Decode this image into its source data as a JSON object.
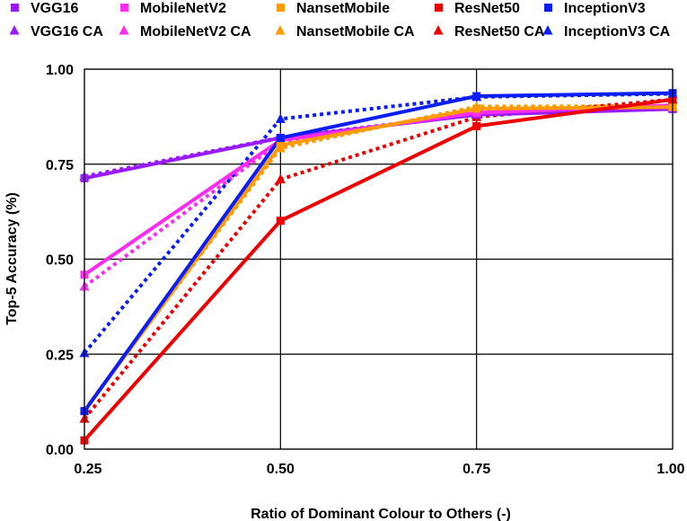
{
  "chart_data": {
    "type": "line",
    "title": "",
    "xlabel": "Ratio of Dominant Colour to Others (-)",
    "ylabel": "Top-5 Accuracy  (%)",
    "x": [
      0.25,
      0.5,
      0.75,
      1.0
    ],
    "x_tick_labels": [
      "0.25",
      "0.50",
      "0.75",
      "1.00"
    ],
    "y_ticks": [
      0.0,
      0.25,
      0.5,
      0.75,
      1.0
    ],
    "y_tick_labels": [
      "0.00",
      "0.25",
      "0.50",
      "0.75",
      "1.00"
    ],
    "xlim": [
      0.25,
      1.0
    ],
    "ylim": [
      0.0,
      1.0
    ],
    "grid": true,
    "legend_position": "top",
    "series": [
      {
        "name": "VGG16",
        "color": "#9a1aff",
        "style": "solid",
        "marker": "square",
        "values": [
          0.713,
          0.819,
          0.88,
          0.895
        ]
      },
      {
        "name": "MobileNetV2",
        "color": "#ff2bf0",
        "style": "solid",
        "marker": "square",
        "values": [
          0.459,
          0.813,
          0.885,
          0.905
        ]
      },
      {
        "name": "NansetMobile",
        "color": "#ff9a00",
        "style": "solid",
        "marker": "square",
        "values": [
          0.1,
          0.8,
          0.896,
          0.9
        ]
      },
      {
        "name": "ResNet50",
        "color": "#ee0000",
        "style": "solid",
        "marker": "square",
        "values": [
          0.023,
          0.601,
          0.85,
          0.92
        ]
      },
      {
        "name": "InceptionV3",
        "color": "#0b1ef5",
        "style": "solid",
        "marker": "square",
        "values": [
          0.1,
          0.819,
          0.929,
          0.937
        ]
      },
      {
        "name": "VGG16 CA",
        "color": "#9a1aff",
        "style": "dotted",
        "marker": "triangle",
        "values": [
          0.718,
          0.82,
          0.882,
          0.897
        ]
      },
      {
        "name": "MobileNetV2 CA",
        "color": "#ff2bf0",
        "style": "dotted",
        "marker": "triangle",
        "values": [
          0.428,
          0.808,
          0.89,
          0.903
        ]
      },
      {
        "name": "NansetMobile CA",
        "color": "#ff9a00",
        "style": "dotted",
        "marker": "triangle",
        "values": [
          0.103,
          0.792,
          0.902,
          0.903
        ]
      },
      {
        "name": "ResNet50 CA",
        "color": "#ee0000",
        "style": "dotted",
        "marker": "triangle",
        "values": [
          0.08,
          0.71,
          0.874,
          0.92
        ]
      },
      {
        "name": "InceptionV3 CA",
        "color": "#0b1ef5",
        "style": "dotted",
        "marker": "triangle",
        "values": [
          0.253,
          0.869,
          0.927,
          0.935
        ]
      }
    ]
  }
}
